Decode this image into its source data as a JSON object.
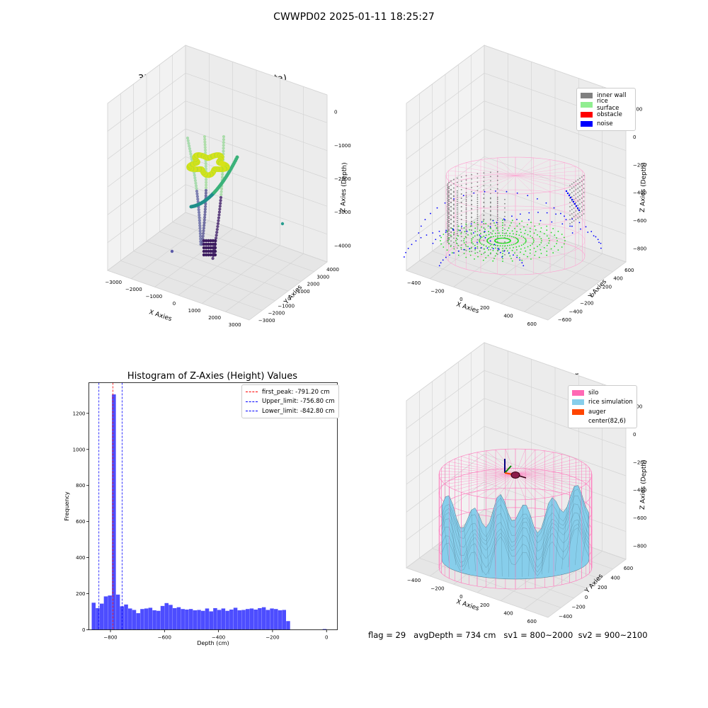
{
  "figure": {
    "title": "CWWPD02 2025-01-11 18:25:27",
    "footer": {
      "flag": "flag = 29",
      "avg_depth": "avgDepth = 734 cm",
      "sv1": "sv1 = 800~2000",
      "sv2": "sv2 = 900~2100"
    }
  },
  "colors": {
    "inner_wall": "#808080",
    "rice_surface": "#90ee90",
    "obstacle": "#ff0000",
    "noise": "#0000ff",
    "silo": "#ff69b4",
    "rice_simulation": "#87ceeb",
    "auger": "#ff4500",
    "histogram_bar": "#4d4dff"
  },
  "chart_data": [
    {
      "type": "scatter",
      "title": "3D Plot of Silo Interior(row data)",
      "xlabel": "X Axies",
      "ylabel": "Y Axies",
      "zlabel": "Z Axies (Depth)",
      "x_ticks": [
        "−3000",
        "−2000",
        "−1000",
        "0",
        "1000",
        "2000",
        "3000"
      ],
      "y_ticks": [
        "−3000",
        "−2000",
        "−1000",
        "0",
        "1000",
        "2000",
        "3000",
        "4000"
      ],
      "z_ticks": [
        "−4000",
        "−3000",
        "−2000",
        "−1000",
        "0"
      ],
      "xlim": [
        -3300,
        3600
      ],
      "ylim": [
        -3500,
        4300
      ],
      "zlim": [
        -4400,
        200
      ]
    },
    {
      "type": "scatter",
      "title": "3D classify of Silo Interior",
      "xlabel": "X Axies",
      "ylabel": "Y Axies",
      "zlabel": "Z Axies (Depth)",
      "x_ticks": [
        "−400",
        "−200",
        "0",
        "200",
        "400",
        "600"
      ],
      "y_ticks": [
        "−600",
        "−400",
        "−200",
        "0",
        "200",
        "400",
        "600"
      ],
      "z_ticks": [
        "−800",
        "−600",
        "−400",
        "−200",
        "0",
        "200"
      ],
      "legend": [
        "inner wall",
        "rice surface",
        "obstacle",
        "noise"
      ],
      "legend_position": "upper right"
    },
    {
      "type": "bar",
      "title": "Histogram of Z-Axies (Height) Values",
      "xlabel": "Depth (cm)",
      "ylabel": "Frequency",
      "x_ticks": [
        -800,
        -600,
        -400,
        -200,
        0
      ],
      "y_ticks": [
        0,
        200,
        400,
        600,
        800,
        1000,
        1200
      ],
      "xlim": [
        -880,
        40
      ],
      "ylim": [
        0,
        1370
      ],
      "bin_width": 15,
      "bins": [
        {
          "x": -862,
          "count": 150
        },
        {
          "x": -847,
          "count": 120
        },
        {
          "x": -832,
          "count": 145
        },
        {
          "x": -817,
          "count": 185
        },
        {
          "x": -802,
          "count": 190
        },
        {
          "x": -787,
          "count": 1305
        },
        {
          "x": -772,
          "count": 195
        },
        {
          "x": -757,
          "count": 130
        },
        {
          "x": -742,
          "count": 140
        },
        {
          "x": -727,
          "count": 118
        },
        {
          "x": -712,
          "count": 110
        },
        {
          "x": -697,
          "count": 92
        },
        {
          "x": -682,
          "count": 115
        },
        {
          "x": -667,
          "count": 118
        },
        {
          "x": -652,
          "count": 122
        },
        {
          "x": -637,
          "count": 108
        },
        {
          "x": -622,
          "count": 105
        },
        {
          "x": -607,
          "count": 132
        },
        {
          "x": -592,
          "count": 148
        },
        {
          "x": -577,
          "count": 138
        },
        {
          "x": -562,
          "count": 120
        },
        {
          "x": -547,
          "count": 125
        },
        {
          "x": -532,
          "count": 115
        },
        {
          "x": -517,
          "count": 112
        },
        {
          "x": -502,
          "count": 115
        },
        {
          "x": -487,
          "count": 108
        },
        {
          "x": -472,
          "count": 110
        },
        {
          "x": -457,
          "count": 105
        },
        {
          "x": -442,
          "count": 118
        },
        {
          "x": -427,
          "count": 102
        },
        {
          "x": -412,
          "count": 120
        },
        {
          "x": -397,
          "count": 110
        },
        {
          "x": -382,
          "count": 118
        },
        {
          "x": -367,
          "count": 105
        },
        {
          "x": -352,
          "count": 112
        },
        {
          "x": -337,
          "count": 122
        },
        {
          "x": -322,
          "count": 108
        },
        {
          "x": -307,
          "count": 110
        },
        {
          "x": -292,
          "count": 115
        },
        {
          "x": -277,
          "count": 118
        },
        {
          "x": -262,
          "count": 112
        },
        {
          "x": -247,
          "count": 120
        },
        {
          "x": -232,
          "count": 125
        },
        {
          "x": -217,
          "count": 110
        },
        {
          "x": -202,
          "count": 118
        },
        {
          "x": -187,
          "count": 115
        },
        {
          "x": -172,
          "count": 108
        },
        {
          "x": -157,
          "count": 110
        },
        {
          "x": -142,
          "count": 48
        },
        {
          "x": -7,
          "count": 4
        }
      ],
      "lines": [
        {
          "name": "first_peak: -791.20 cm",
          "x": -791.2,
          "color": "#ff0000"
        },
        {
          "name": "Upper_limit: -756.80 cm",
          "x": -756.8,
          "color": "#0000ff"
        },
        {
          "name": "Lower_limit: -842.80 cm",
          "x": -842.8,
          "color": "#0000ff"
        }
      ],
      "legend_position": "upper right"
    },
    {
      "type": "area",
      "title": "3D simulation of Silo Interior",
      "xlabel": "X Axies",
      "ylabel": "Y Axies",
      "zlabel": "Z Axies (Depth)",
      "x_ticks": [
        "−400",
        "−200",
        "0",
        "200",
        "400",
        "600"
      ],
      "y_ticks": [
        "−400",
        "−200",
        "0",
        "200",
        "400",
        "600"
      ],
      "z_ticks": [
        "−800",
        "−600",
        "−400",
        "−200",
        "0",
        "200"
      ],
      "legend": [
        "silo",
        "rice simulation",
        "auger",
        "center(82,6)"
      ],
      "legend_position": "upper right"
    }
  ]
}
